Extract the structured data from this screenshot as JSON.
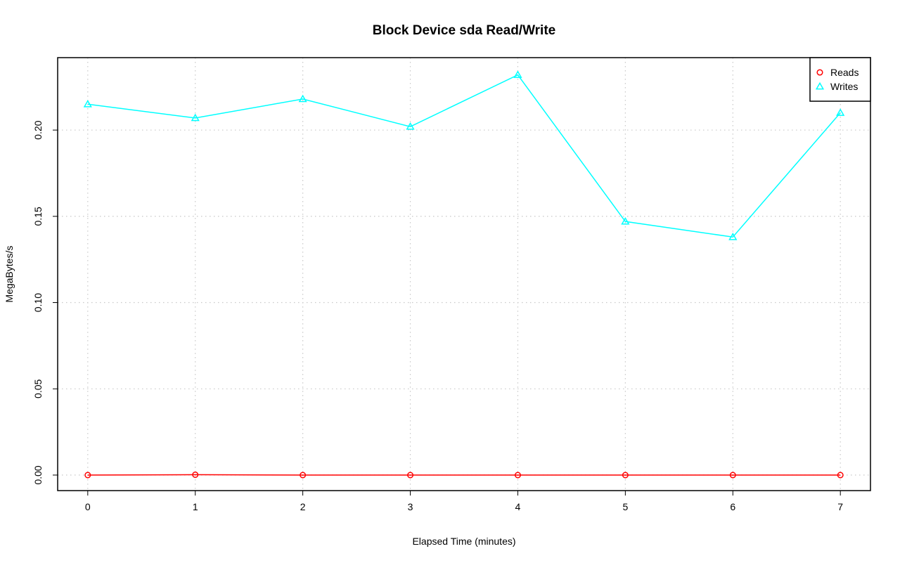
{
  "chart_data": {
    "type": "line",
    "title": "Block Device sda Read/Write",
    "xlabel": "Elapsed Time (minutes)",
    "ylabel": "MegaBytes/s",
    "x": [
      0,
      1,
      2,
      3,
      4,
      5,
      6,
      7
    ],
    "xlim": [
      -0.28,
      7.28
    ],
    "ylim": [
      -0.009,
      0.242
    ],
    "xticks": [
      0,
      1,
      2,
      3,
      4,
      5,
      6,
      7
    ],
    "yticks": [
      "0.00",
      "0.05",
      "0.10",
      "0.15",
      "0.20"
    ],
    "grid": true,
    "legend_position": "top-right",
    "series": [
      {
        "name": "Reads",
        "color": "#ff0000",
        "marker": "circle",
        "values": [
          0.0,
          0.0002,
          0.0,
          0.0,
          0.0,
          0.0,
          0.0,
          0.0
        ]
      },
      {
        "name": "Writes",
        "color": "#00ffff",
        "marker": "triangle",
        "values": [
          0.215,
          0.207,
          0.218,
          0.202,
          0.232,
          0.147,
          0.138,
          0.21
        ]
      }
    ]
  }
}
